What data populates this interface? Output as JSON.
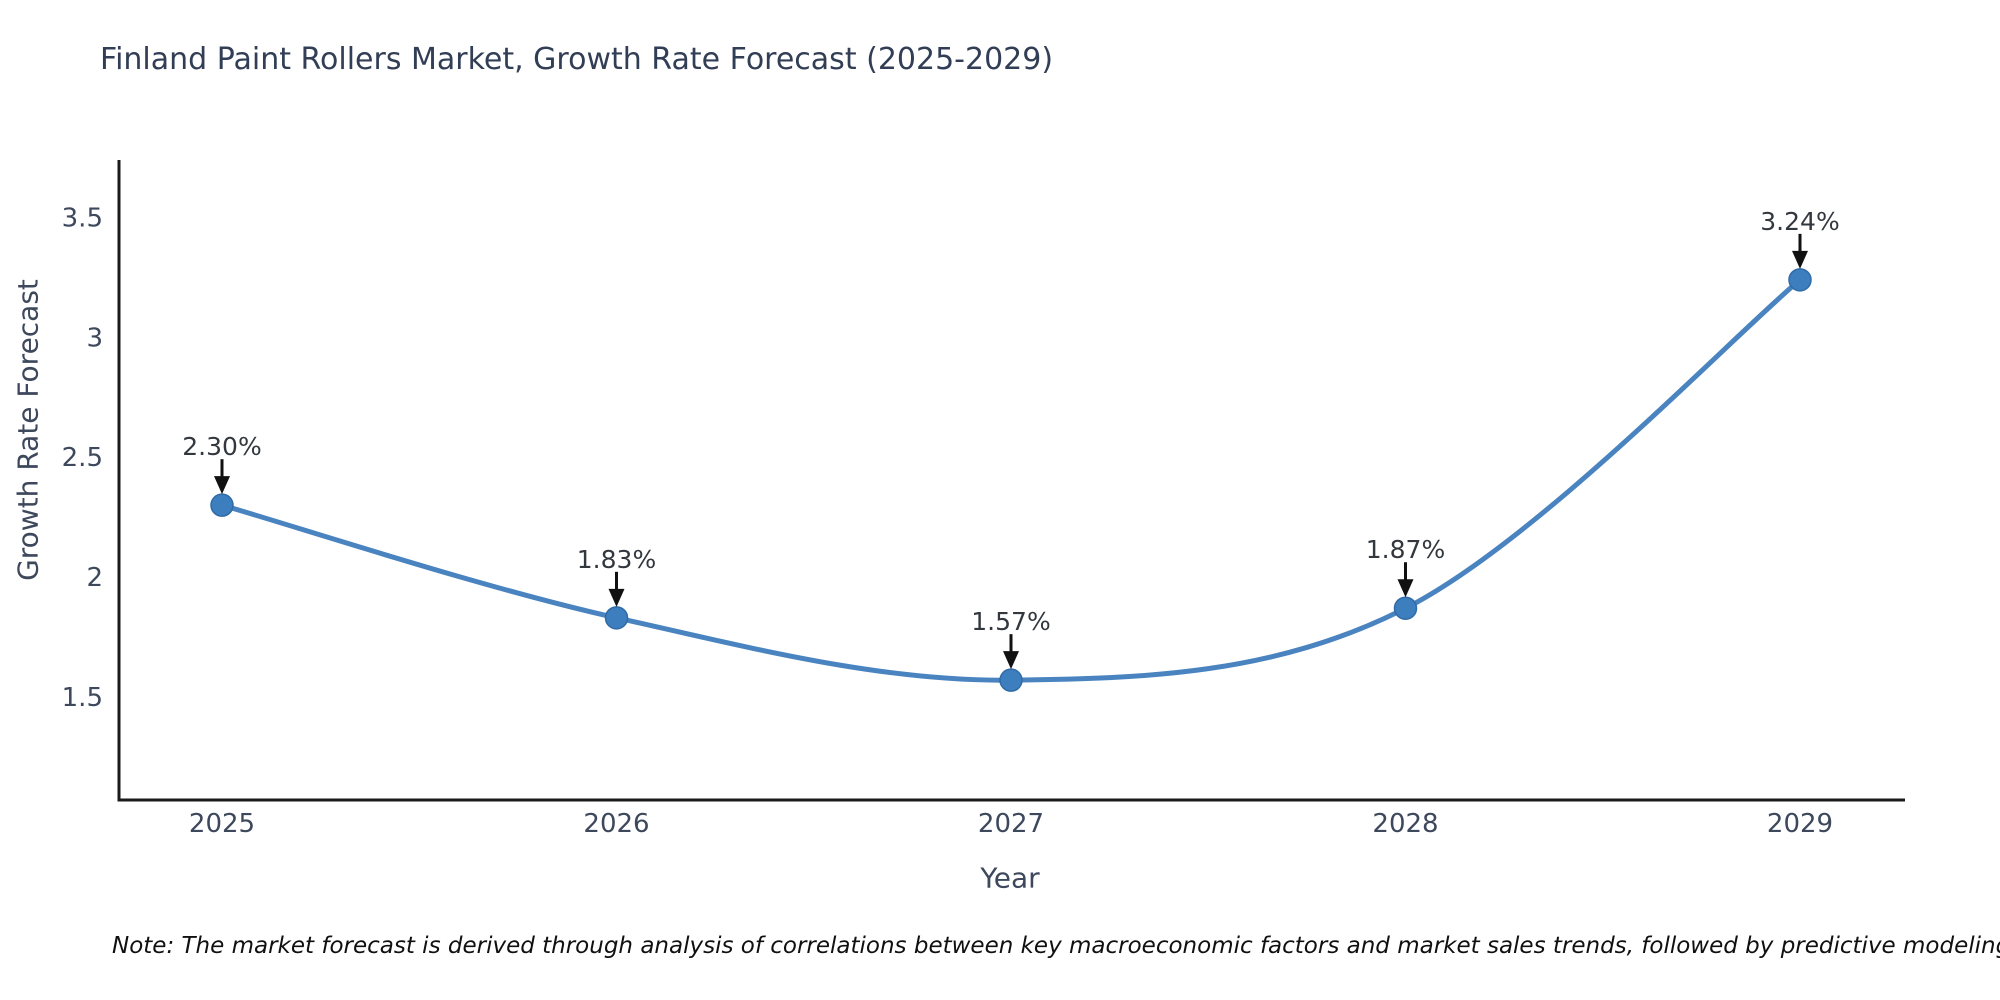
{
  "title": "Finland Paint Rollers Market, Growth Rate Forecast (2025-2029)",
  "note": "Note: The market forecast is derived through analysis of correlations between key macroeconomic factors and market sales trends, followed by predictive modeling to project future sales",
  "chart_data": {
    "type": "line",
    "title": "Finland Paint Rollers Market, Growth Rate Forecast (2025-2029)",
    "xlabel": "Year",
    "ylabel": "Growth Rate Forecast",
    "categories": [
      "2025",
      "2026",
      "2027",
      "2028",
      "2029"
    ],
    "series": [
      {
        "name": "Growth Rate Forecast",
        "values": [
          2.3,
          1.83,
          1.57,
          1.87,
          3.24
        ]
      }
    ],
    "point_labels": [
      "2.30%",
      "1.83%",
      "1.57%",
      "1.87%",
      "3.24%"
    ],
    "ytick_values": [
      1.5,
      2.0,
      2.5,
      3.0,
      3.5
    ],
    "ytick_labels": [
      "1.5",
      "2",
      "2.5",
      "3",
      "3.5"
    ],
    "ylim": [
      1.07,
      3.74
    ],
    "grid": false,
    "legend": false,
    "annotation_style": "value label with down arrow to marker",
    "colors": {
      "line": "#4a84c0",
      "marker": "#3d7ebf",
      "marker_edge": "#2f6ba6",
      "axis": "#1a1a1a",
      "tick_label": "#3d485c",
      "title": "#323e55",
      "annotation": "#33383f",
      "note": "#101010",
      "background": "#ffffff"
    }
  }
}
